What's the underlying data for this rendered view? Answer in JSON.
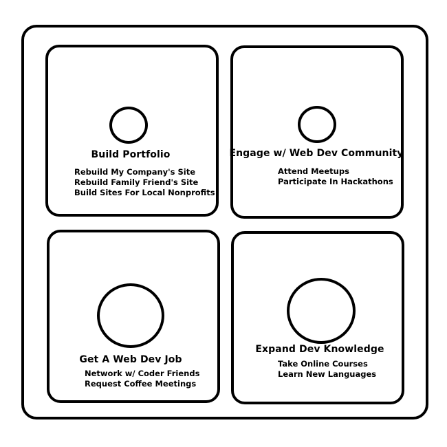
{
  "quadrants": [
    {
      "title": "Build Portfolio",
      "items": [
        "Rebuild My Company's Site",
        "Rebuild Family Friend's Site",
        "Build Sites For Local Nonprofits"
      ]
    },
    {
      "title": "Engage w/ Web Dev Community",
      "items": [
        "Attend Meetups",
        "Participate In Hackathons"
      ]
    },
    {
      "title": "Get A Web Dev Job",
      "items": [
        "Network w/ Coder Friends",
        "Request Coffee Meetings"
      ]
    },
    {
      "title": "Expand Dev Knowledge",
      "items": [
        "Take Online Courses",
        "Learn New Languages"
      ]
    }
  ]
}
